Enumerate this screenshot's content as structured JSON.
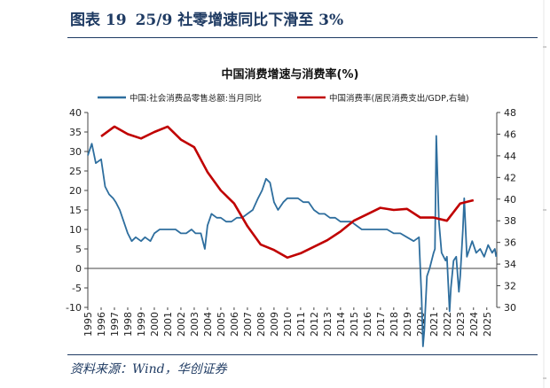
{
  "figure": {
    "label": "图表 19",
    "caption": "25/9 社零增速同比下滑至 3%",
    "source": "资料来源：Wind，华创证券"
  },
  "chart_data": {
    "type": "line",
    "title": "中国消费增速与消费率(%)",
    "x_tick_labels": [
      "1995",
      "1996",
      "1997",
      "1998",
      "1999",
      "2000",
      "2001",
      "2002",
      "2003",
      "2004",
      "2005",
      "2006",
      "2007",
      "2008",
      "2009",
      "2010",
      "2011",
      "2012",
      "2013",
      "2014",
      "2015",
      "2016",
      "2017",
      "2018",
      "2019",
      "2020",
      "2021",
      "2022",
      "2023",
      "2024",
      "2025"
    ],
    "y_left": {
      "ylim": [
        -10,
        40
      ],
      "ticks": [
        "40",
        "35",
        "30",
        "25",
        "20",
        "15",
        "10",
        "5",
        "0",
        "-5",
        "-10"
      ]
    },
    "y_right": {
      "ylim": [
        30,
        48
      ],
      "ticks": [
        "48",
        "46",
        "44",
        "42",
        "40",
        "38",
        "36",
        "34",
        "32",
        "30"
      ]
    },
    "legend_position": "top",
    "series": [
      {
        "name": "中国:社会消费品零售总额:当月同比",
        "axis": "left",
        "color": "#2e6e9e",
        "x": [
          1995.0,
          1995.3,
          1995.6,
          1996.0,
          1996.3,
          1996.6,
          1996.9,
          1997.1,
          1997.4,
          1997.7,
          1998.0,
          1998.3,
          1998.6,
          1999.0,
          1999.3,
          1999.7,
          2000.0,
          2000.4,
          2000.8,
          2001.2,
          2001.6,
          2002.0,
          2002.4,
          2002.8,
          2003.1,
          2003.5,
          2003.8,
          2004.0,
          2004.3,
          2004.7,
          2005.0,
          2005.4,
          2005.8,
          2006.2,
          2006.6,
          2007.0,
          2007.4,
          2007.8,
          2008.1,
          2008.4,
          2008.7,
          2009.0,
          2009.3,
          2009.7,
          2010.0,
          2010.4,
          2010.8,
          2011.2,
          2011.6,
          2012.0,
          2012.4,
          2012.8,
          2013.2,
          2013.6,
          2014.0,
          2014.4,
          2014.8,
          2015.2,
          2015.6,
          2016.0,
          2016.5,
          2017.0,
          2017.5,
          2018.0,
          2018.5,
          2019.0,
          2019.5,
          2019.9,
          2020.1,
          2020.2,
          2020.3,
          2020.5,
          2020.7,
          2021.0,
          2021.1,
          2021.2,
          2021.4,
          2021.6,
          2021.9,
          2022.0,
          2022.2,
          2022.3,
          2022.5,
          2022.7,
          2022.9,
          2023.0,
          2023.2,
          2023.3,
          2023.5,
          2023.7,
          2023.9,
          2024.2,
          2024.5,
          2024.8,
          2025.1,
          2025.4,
          2025.6,
          2025.7
        ],
        "y": [
          29,
          32,
          27,
          28,
          21,
          19,
          18,
          17,
          15,
          12,
          9,
          7,
          8,
          7,
          8,
          7,
          9,
          10,
          10,
          10,
          10,
          9,
          9,
          10,
          9,
          9,
          5,
          11,
          14,
          13,
          13,
          12,
          12,
          13,
          13,
          14,
          15,
          18,
          20,
          23,
          22,
          17,
          15,
          17,
          18,
          18,
          18,
          17,
          17,
          15,
          14,
          14,
          13,
          13,
          12,
          12,
          12,
          11,
          10,
          10,
          10,
          10,
          10,
          9,
          9,
          8,
          7,
          8,
          -8,
          -20,
          -16,
          -2,
          0,
          4,
          5,
          34,
          12,
          4,
          2,
          3,
          -11,
          -5,
          2,
          3,
          -6,
          -2,
          10,
          18,
          3,
          5,
          7,
          4,
          5,
          3,
          6,
          4,
          5,
          3
        ]
      },
      {
        "name": "中国消费率(居民消费支出/GDP,右轴)",
        "axis": "right",
        "color": "#c00000",
        "x": [
          1996,
          1997,
          1998,
          1999,
          2000,
          2001,
          2002,
          2003,
          2004,
          2005,
          2006,
          2007,
          2008,
          2009,
          2010,
          2011,
          2012,
          2013,
          2014,
          2015,
          2016,
          2017,
          2018,
          2019,
          2020,
          2021,
          2022,
          2023,
          2024
        ],
        "y": [
          45.8,
          46.7,
          46.0,
          45.6,
          46.2,
          46.7,
          45.5,
          44.8,
          42.5,
          40.8,
          39.6,
          37.5,
          35.8,
          35.3,
          34.6,
          35.0,
          35.6,
          36.2,
          37.0,
          38.0,
          38.6,
          39.2,
          39.0,
          39.1,
          38.3,
          38.3,
          38.0,
          39.6,
          39.9
        ]
      }
    ]
  }
}
